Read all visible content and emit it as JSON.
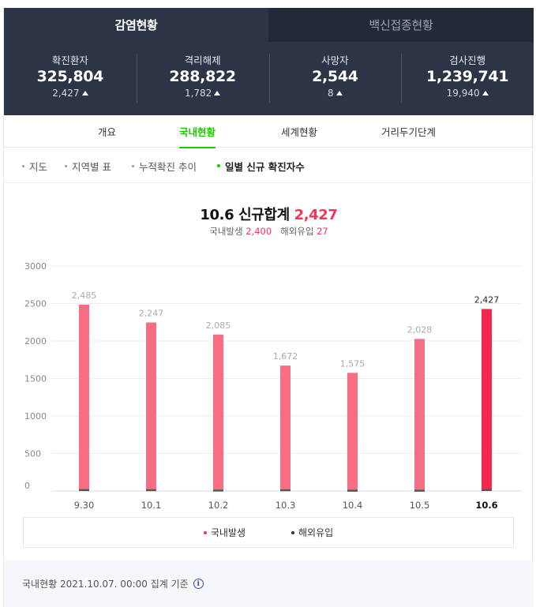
{
  "top_tabs": [
    {
      "label": "감염현황",
      "active": true
    },
    {
      "label": "백신접종현황",
      "active": false
    }
  ],
  "stats": [
    {
      "label": "확진환자",
      "value": "325,804",
      "delta": "2,427"
    },
    {
      "label": "격리해제",
      "value": "288,822",
      "delta": "1,782"
    },
    {
      "label": "사망자",
      "value": "2,544",
      "delta": "8"
    },
    {
      "label": "검사진행",
      "value": "1,239,741",
      "delta": "19,940"
    }
  ],
  "sub_tabs": [
    {
      "label": "개요",
      "active": false
    },
    {
      "label": "국내현황",
      "active": true
    },
    {
      "label": "세계현황",
      "active": false
    },
    {
      "label": "거리두기단계",
      "active": false
    }
  ],
  "filters": [
    {
      "label": "지도",
      "active": false
    },
    {
      "label": "지역별 표",
      "active": false
    },
    {
      "label": "누적확진 추이",
      "active": false
    },
    {
      "label": "일별 신규 확진자수",
      "active": true
    }
  ],
  "summary": {
    "title_prefix": "10.6 신규합계",
    "total": "2,427",
    "domestic_label": "국내발생",
    "domestic_value": "2,400",
    "overseas_label": "해외유입",
    "overseas_value": "27"
  },
  "chart_data": {
    "type": "bar",
    "categories": [
      "9.30",
      "10.1",
      "10.2",
      "10.3",
      "10.4",
      "10.5",
      "10.6"
    ],
    "series": [
      {
        "name": "국내발생",
        "values": [
          2460,
          2223,
          2066,
          1649,
          1558,
          2011,
          2400
        ]
      },
      {
        "name": "해외유입",
        "values": [
          25,
          24,
          19,
          23,
          17,
          17,
          27
        ]
      }
    ],
    "totals_labels": [
      "2,485",
      "2,247",
      "2,085",
      "1,672",
      "1,575",
      "2,028",
      "2,427"
    ],
    "yticks": [
      "3000",
      "2500",
      "2000",
      "1500",
      "1000",
      "500",
      "0"
    ],
    "ylim": [
      0,
      3000
    ],
    "highlight_index": 6,
    "colors": {
      "domestic": "#f96d84",
      "domestic_highlight": "#f2294e",
      "overseas": "#555555"
    },
    "legend": [
      {
        "label": "국내발생",
        "color": "#f0365a"
      },
      {
        "label": "해외유입",
        "color": "#333333"
      }
    ]
  },
  "footer": {
    "text": "국내현황 2021.10.07. 00:00 집계 기준",
    "icon": "info-icon"
  }
}
